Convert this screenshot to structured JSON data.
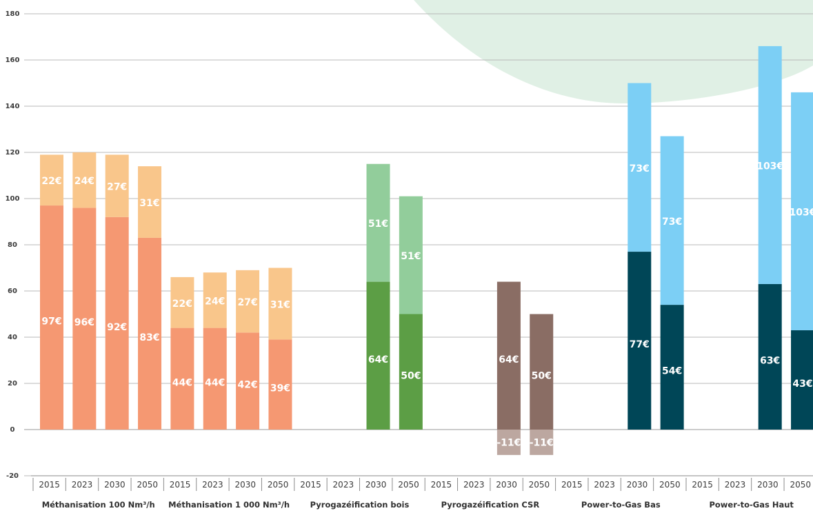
{
  "chart_data": {
    "type": "bar",
    "stacked": true,
    "ylim": [
      -20,
      180
    ],
    "yticks": [
      -20,
      0,
      20,
      40,
      60,
      80,
      100,
      120,
      140,
      160,
      180
    ],
    "grid": true,
    "value_label_suffix": "€",
    "years": [
      "2015",
      "2023",
      "2030",
      "2050"
    ],
    "groups": [
      {
        "label": "Méthanisation 100 Nm³/h",
        "bottom_color": "#F59872",
        "top_color": "#F9C68B",
        "bars": [
          {
            "year": "2015",
            "bottom": 97,
            "top": 22
          },
          {
            "year": "2023",
            "bottom": 96,
            "top": 24
          },
          {
            "year": "2030",
            "bottom": 92,
            "top": 27
          },
          {
            "year": "2050",
            "bottom": 83,
            "top": 31
          }
        ]
      },
      {
        "label": "Méthanisation 1 000 Nm³/h",
        "bottom_color": "#F59872",
        "top_color": "#F9C68B",
        "bars": [
          {
            "year": "2015",
            "bottom": 44,
            "top": 22
          },
          {
            "year": "2023",
            "bottom": 44,
            "top": 24
          },
          {
            "year": "2030",
            "bottom": 42,
            "top": 27
          },
          {
            "year": "2050",
            "bottom": 39,
            "top": 31
          }
        ]
      },
      {
        "label": "Pyrogazéification bois",
        "bottom_color": "#5C9E45",
        "top_color": "#92CD9B",
        "bars": [
          {
            "year": "2015",
            "bottom": null,
            "top": null
          },
          {
            "year": "2023",
            "bottom": null,
            "top": null
          },
          {
            "year": "2030",
            "bottom": 64,
            "top": 51
          },
          {
            "year": "2050",
            "bottom": 50,
            "top": 51
          }
        ]
      },
      {
        "label": "Pyrogazéification CSR",
        "bottom_color": "#8A6D64",
        "top_color": "#BCA7A0",
        "bars": [
          {
            "year": "2015",
            "bottom": null,
            "top": null
          },
          {
            "year": "2023",
            "bottom": null,
            "top": null
          },
          {
            "year": "2030",
            "bottom": 64,
            "top": -11
          },
          {
            "year": "2050",
            "bottom": 50,
            "top": -11
          }
        ]
      },
      {
        "label": "Power-to-Gas Bas",
        "bottom_color": "#004657",
        "top_color": "#7CCFF5",
        "bars": [
          {
            "year": "2015",
            "bottom": null,
            "top": null
          },
          {
            "year": "2023",
            "bottom": null,
            "top": null
          },
          {
            "year": "2030",
            "bottom": 77,
            "top": 73
          },
          {
            "year": "2050",
            "bottom": 54,
            "top": 73
          }
        ]
      },
      {
        "label": "Power-to-Gas Haut",
        "bottom_color": "#004657",
        "top_color": "#7CCFF5",
        "bars": [
          {
            "year": "2015",
            "bottom": null,
            "top": null
          },
          {
            "year": "2023",
            "bottom": null,
            "top": null
          },
          {
            "year": "2030",
            "bottom": 63,
            "top": 103
          },
          {
            "year": "2050",
            "bottom": 43,
            "top": 103
          }
        ]
      }
    ]
  },
  "colors": {
    "grid": "#b8b8b8",
    "axis": "#8a8a8a",
    "background_blob": "#d6ebdc"
  }
}
